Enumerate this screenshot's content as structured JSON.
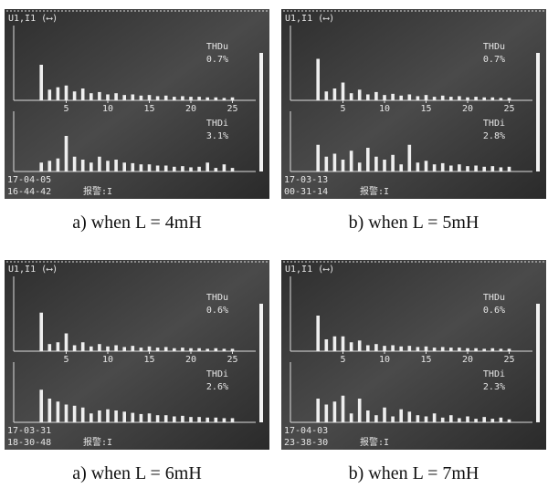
{
  "chart_data": [
    {
      "type": "bar",
      "caption": "a) when L = 4mH",
      "header": "U1,I1 (⟷)",
      "thdu_label": "THDu",
      "thdu_value": "0.7%",
      "thdi_label": "THDi",
      "thdi_value": "3.1%",
      "date": "17-04-05",
      "time": "16-44-42",
      "alarm": "报警:I",
      "x": [
        2,
        3,
        4,
        5,
        6,
        7,
        8,
        9,
        10,
        11,
        12,
        13,
        14,
        15,
        16,
        17,
        18,
        19,
        20,
        21,
        22,
        23,
        24,
        25
      ],
      "xticks": [
        5,
        10,
        15,
        20,
        25
      ],
      "ylim": [
        0,
        100
      ],
      "u_values": [
        60,
        18,
        22,
        25,
        15,
        20,
        12,
        14,
        10,
        12,
        9,
        10,
        8,
        9,
        7,
        8,
        6,
        7,
        6,
        6,
        5,
        5,
        4,
        5
      ],
      "i_values": [
        15,
        18,
        22,
        60,
        25,
        20,
        15,
        25,
        18,
        20,
        15,
        14,
        12,
        12,
        10,
        10,
        8,
        9,
        7,
        8,
        15,
        6,
        12,
        6
      ]
    },
    {
      "type": "bar",
      "caption": "b) when L = 5mH",
      "header": "U1,I1 (⟷)",
      "thdu_label": "THDu",
      "thdu_value": "0.7%",
      "thdi_label": "THDi",
      "thdi_value": "2.8%",
      "date": "17-03-13",
      "time": "00-31-14",
      "alarm": "报警:I",
      "x": [
        2,
        3,
        4,
        5,
        6,
        7,
        8,
        9,
        10,
        11,
        12,
        13,
        14,
        15,
        16,
        17,
        18,
        19,
        20,
        21,
        22,
        23,
        24,
        25
      ],
      "xticks": [
        5,
        10,
        15,
        20,
        25
      ],
      "ylim": [
        0,
        100
      ],
      "u_values": [
        70,
        15,
        20,
        30,
        12,
        18,
        10,
        14,
        9,
        11,
        8,
        10,
        7,
        9,
        6,
        8,
        6,
        7,
        5,
        6,
        5,
        5,
        4,
        4
      ],
      "i_values": [
        45,
        25,
        30,
        20,
        35,
        15,
        40,
        25,
        20,
        28,
        12,
        45,
        15,
        18,
        12,
        14,
        10,
        12,
        9,
        10,
        8,
        9,
        7,
        8
      ]
    },
    {
      "type": "bar",
      "caption": "a) when L = 6mH",
      "header": "U1,I1 (⟷)",
      "thdu_label": "THDu",
      "thdu_value": "0.6%",
      "thdi_label": "THDi",
      "thdi_value": "2.6%",
      "date": "17-03-31",
      "time": "18-30-48",
      "alarm": "报警:I",
      "x": [
        2,
        3,
        4,
        5,
        6,
        7,
        8,
        9,
        10,
        11,
        12,
        13,
        14,
        15,
        16,
        17,
        18,
        19,
        20,
        21,
        22,
        23,
        24,
        25
      ],
      "xticks": [
        5,
        10,
        15,
        20,
        25
      ],
      "ylim": [
        0,
        100
      ],
      "u_values": [
        65,
        12,
        15,
        30,
        10,
        15,
        8,
        12,
        8,
        10,
        7,
        9,
        6,
        8,
        6,
        7,
        5,
        6,
        5,
        5,
        4,
        5,
        4,
        4
      ],
      "i_values": [
        55,
        40,
        35,
        30,
        28,
        25,
        15,
        20,
        22,
        20,
        18,
        16,
        14,
        15,
        12,
        12,
        10,
        11,
        9,
        9,
        8,
        8,
        7,
        7
      ]
    },
    {
      "type": "bar",
      "caption": "b) when L = 7mH",
      "header": "U1,I1 (⟷)",
      "thdu_label": "THDu",
      "thdu_value": "0.6%",
      "thdi_label": "THDi",
      "thdi_value": "2.3%",
      "date": "17-04-03",
      "time": "23-38-30",
      "alarm": "报警:I",
      "x": [
        2,
        3,
        4,
        5,
        6,
        7,
        8,
        9,
        10,
        11,
        12,
        13,
        14,
        15,
        16,
        17,
        18,
        19,
        20,
        21,
        22,
        23,
        24,
        25
      ],
      "xticks": [
        5,
        10,
        15,
        20,
        25
      ],
      "ylim": [
        0,
        100
      ],
      "u_values": [
        60,
        20,
        25,
        25,
        15,
        18,
        10,
        12,
        9,
        10,
        8,
        9,
        7,
        8,
        6,
        7,
        6,
        6,
        5,
        5,
        4,
        5,
        4,
        4
      ],
      "i_values": [
        40,
        30,
        35,
        45,
        15,
        40,
        20,
        12,
        25,
        10,
        22,
        18,
        12,
        10,
        15,
        8,
        12,
        7,
        10,
        6,
        9,
        6,
        8,
        5
      ]
    }
  ]
}
